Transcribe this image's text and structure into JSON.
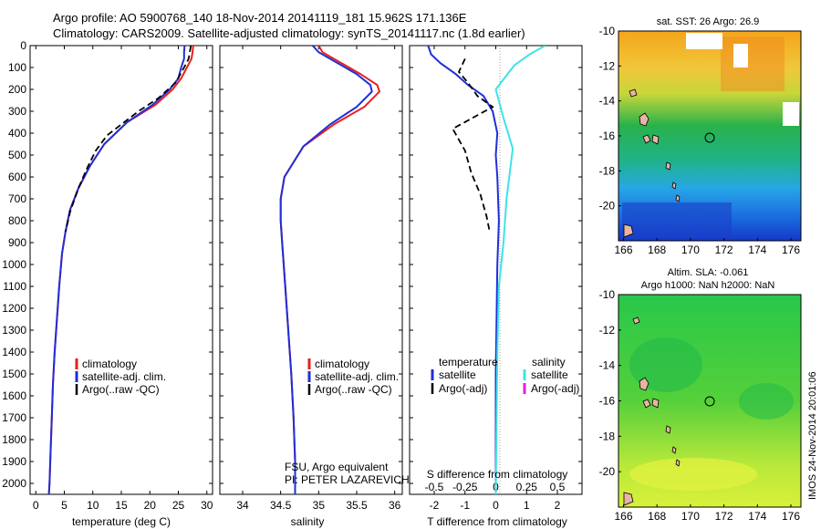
{
  "header": {
    "line1": "Argo profile: AO 5900768_140 18-Nov-2014 20141119_181 15.962S 171.136E",
    "line2": "Climatology: CARS2009. Satellite-adjusted climatology: synTS_20141117.nc (1.8d earlier)"
  },
  "side_text": "IMOS 24-Nov-2014 20:01:06",
  "colors": {
    "climatology": "#e8201c",
    "satellite": "#1f2fd8",
    "argo": "#000000",
    "salinity_sat": "#3fe3e6",
    "salinity_argo": "#e020e0"
  },
  "chart_data": [
    {
      "type": "line",
      "id": "temperature",
      "xlabel": "temperature (deg C)",
      "xlim": [
        -1,
        31
      ],
      "xticks": [
        0,
        5,
        10,
        15,
        20,
        25,
        30
      ],
      "ylim": [
        2050,
        0
      ],
      "yticks": [
        0,
        100,
        200,
        300,
        400,
        500,
        600,
        700,
        800,
        900,
        1000,
        1100,
        1200,
        1300,
        1400,
        1500,
        1600,
        1700,
        1800,
        1900,
        2000
      ],
      "legend": [
        "climatology",
        "satellite-adj. clim.",
        "Argo(..raw -QC)"
      ],
      "series": [
        {
          "name": "climatology",
          "color": "#e8201c",
          "dash": false,
          "points": [
            [
              27.6,
              0
            ],
            [
              27.5,
              30
            ],
            [
              27.3,
              60
            ],
            [
              26.5,
              100
            ],
            [
              25.5,
              150
            ],
            [
              24,
              200
            ],
            [
              21,
              270
            ],
            [
              16,
              350
            ],
            [
              12,
              450
            ],
            [
              9.5,
              550
            ],
            [
              7.5,
              650
            ],
            [
              6,
              750
            ],
            [
              5.2,
              850
            ],
            [
              4.6,
              950
            ],
            [
              4.1,
              1100
            ],
            [
              3.7,
              1250
            ],
            [
              3.3,
              1400
            ],
            [
              3.0,
              1550
            ],
            [
              2.8,
              1700
            ],
            [
              2.6,
              1850
            ],
            [
              2.4,
              2000
            ],
            [
              2.3,
              2050
            ]
          ]
        },
        {
          "name": "satellite-adj. clim.",
          "color": "#1f2fd8",
          "dash": false,
          "points": [
            [
              26.1,
              0
            ],
            [
              26,
              30
            ],
            [
              26,
              60
            ],
            [
              25.5,
              100
            ],
            [
              25,
              150
            ],
            [
              23.5,
              200
            ],
            [
              20.5,
              270
            ],
            [
              16,
              350
            ],
            [
              12,
              450
            ],
            [
              9.5,
              550
            ],
            [
              7.5,
              650
            ],
            [
              6,
              750
            ],
            [
              5.2,
              850
            ],
            [
              4.6,
              950
            ],
            [
              4.1,
              1100
            ],
            [
              3.7,
              1250
            ],
            [
              3.3,
              1400
            ],
            [
              3.0,
              1550
            ],
            [
              2.8,
              1700
            ],
            [
              2.6,
              1850
            ],
            [
              2.4,
              2000
            ],
            [
              2.3,
              2050
            ]
          ]
        },
        {
          "name": "Argo(..raw -QC)",
          "color": "#000000",
          "dash": true,
          "points": [
            [
              27.2,
              0
            ],
            [
              27,
              30
            ],
            [
              26.8,
              60
            ],
            [
              26,
              100
            ],
            [
              24.5,
              170
            ],
            [
              21.5,
              240
            ],
            [
              18,
              300
            ],
            [
              15,
              360
            ],
            [
              12.5,
              410
            ],
            [
              10.5,
              480
            ],
            [
              9,
              560
            ],
            [
              7.5,
              650
            ],
            [
              6,
              760
            ],
            [
              5.2,
              850
            ]
          ]
        }
      ]
    },
    {
      "type": "line",
      "id": "salinity",
      "xlabel": "salinity",
      "xlim": [
        33.7,
        36.1
      ],
      "xticks": [
        34,
        34.5,
        35,
        35.5,
        36
      ],
      "ylim": [
        2050,
        0
      ],
      "legend": [
        "climatology",
        "satellite-adj. clim.",
        "Argo(..raw -QC)"
      ],
      "annotation": [
        "FSU, Argo equivalent",
        "PI: PETER LAZAREVICH"
      ],
      "series": [
        {
          "name": "climatology",
          "color": "#e8201c",
          "dash": false,
          "points": [
            [
              35.0,
              0
            ],
            [
              35.05,
              30
            ],
            [
              35.3,
              80
            ],
            [
              35.55,
              130
            ],
            [
              35.77,
              180
            ],
            [
              35.8,
              210
            ],
            [
              35.6,
              280
            ],
            [
              35.2,
              360
            ],
            [
              34.8,
              460
            ],
            [
              34.55,
              600
            ],
            [
              34.5,
              700
            ],
            [
              34.5,
              800
            ],
            [
              34.52,
              900
            ],
            [
              34.56,
              1100
            ],
            [
              34.6,
              1300
            ],
            [
              34.64,
              1500
            ],
            [
              34.67,
              1700
            ],
            [
              34.69,
              1900
            ],
            [
              34.69,
              2050
            ]
          ]
        },
        {
          "name": "satellite-adj. clim.",
          "color": "#1f2fd8",
          "dash": false,
          "points": [
            [
              34.92,
              0
            ],
            [
              35.0,
              30
            ],
            [
              35.25,
              80
            ],
            [
              35.5,
              130
            ],
            [
              35.68,
              180
            ],
            [
              35.7,
              210
            ],
            [
              35.5,
              280
            ],
            [
              35.15,
              360
            ],
            [
              34.8,
              460
            ],
            [
              34.55,
              600
            ],
            [
              34.5,
              700
            ],
            [
              34.5,
              800
            ],
            [
              34.52,
              900
            ],
            [
              34.56,
              1100
            ],
            [
              34.6,
              1300
            ],
            [
              34.64,
              1500
            ],
            [
              34.67,
              1700
            ],
            [
              34.69,
              1900
            ],
            [
              34.69,
              2050
            ]
          ]
        }
      ]
    },
    {
      "type": "line",
      "id": "difference",
      "xlabel": "T difference from climatology",
      "xlabel_top": "S difference from climatology",
      "xlim": [
        -2.8,
        2.8
      ],
      "xticks": [
        -2,
        -1,
        0,
        1,
        2
      ],
      "xticks_s_labels": [
        "-0.5",
        "-0.25",
        "0",
        "0.25",
        "0.5"
      ],
      "ylim": [
        2050,
        0
      ],
      "legend_left_title": "temperature",
      "legend_right_title": "salinity",
      "legend_left": [
        "satellite",
        "Argo(-adj)"
      ],
      "legend_right": [
        "satellite",
        "Argo(-adj)"
      ],
      "series": [
        {
          "name": "satellite",
          "color": "#1f2fd8",
          "dash": false,
          "points": [
            [
              -2.2,
              0
            ],
            [
              -2.1,
              40
            ],
            [
              -1.8,
              80
            ],
            [
              -1.3,
              130
            ],
            [
              -0.9,
              180
            ],
            [
              -0.4,
              230
            ],
            [
              -0.1,
              300
            ],
            [
              0.05,
              400
            ],
            [
              0.0,
              500
            ],
            [
              0.05,
              600
            ],
            [
              0.1,
              800
            ],
            [
              0.05,
              1000
            ],
            [
              0.0,
              1500
            ],
            [
              0.0,
              2050
            ]
          ]
        },
        {
          "name": "Argo(-adj)",
          "color": "#000000",
          "dash": true,
          "points": [
            [
              -1.0,
              60
            ],
            [
              -1.2,
              120
            ],
            [
              -0.9,
              170
            ],
            [
              -0.6,
              230
            ],
            [
              -0.1,
              280
            ],
            [
              -1.4,
              380
            ],
            [
              -1.0,
              480
            ],
            [
              -0.8,
              580
            ],
            [
              -0.5,
              680
            ],
            [
              -0.3,
              780
            ],
            [
              -0.2,
              850
            ]
          ]
        },
        {
          "name": "satellite",
          "color": "#3fe3e6",
          "dash": false,
          "points": [
            [
              1.6,
              0
            ],
            [
              1.1,
              40
            ],
            [
              0.6,
              90
            ],
            [
              0.0,
              200
            ],
            [
              0.25,
              330
            ],
            [
              0.55,
              470
            ],
            [
              0.35,
              700
            ],
            [
              0.25,
              900
            ],
            [
              0.1,
              1100
            ],
            [
              0.05,
              1400
            ],
            [
              0.0,
              2050
            ]
          ]
        }
      ]
    }
  ],
  "maps": [
    {
      "id": "sst",
      "title": "sat. SST: 26 Argo: 26.9",
      "xticks": [
        166,
        168,
        170,
        172,
        174,
        176
      ],
      "yticks": [
        -10,
        -12,
        -14,
        -16,
        -18,
        -20
      ],
      "xlim": [
        165.7,
        176.6
      ],
      "ylim": [
        -22,
        -10
      ],
      "marker": [
        171.136,
        -15.962
      ]
    },
    {
      "id": "sla",
      "title_line1": "Altim. SLA: -0.061",
      "title_line2": "Argo h1000: NaN h2000: NaN",
      "xticks": [
        166,
        168,
        170,
        172,
        174,
        176
      ],
      "yticks": [
        -10,
        -12,
        -14,
        -16,
        -18,
        -20
      ],
      "xlim": [
        165.7,
        176.6
      ],
      "ylim": [
        -22,
        -10
      ],
      "marker": [
        171.136,
        -15.962
      ]
    }
  ]
}
